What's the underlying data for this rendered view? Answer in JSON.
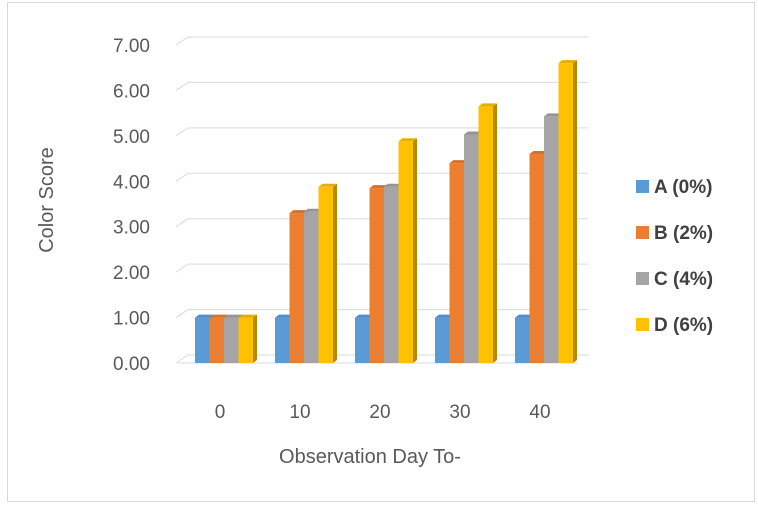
{
  "chart_data": {
    "type": "bar",
    "categories": [
      "0",
      "10",
      "20",
      "30",
      "40"
    ],
    "series": [
      {
        "name": "A (0%)",
        "values": [
          1.0,
          1.0,
          1.0,
          1.0,
          1.0
        ],
        "color": "#5b9bd5"
      },
      {
        "name": "B (2%)",
        "values": [
          1.0,
          3.3,
          3.85,
          4.4,
          4.6
        ],
        "color": "#ed7d31"
      },
      {
        "name": "C (4%)",
        "values": [
          1.0,
          3.33,
          3.88,
          5.03,
          5.43
        ],
        "color": "#a5a5a5"
      },
      {
        "name": "D (6%)",
        "values": [
          1.0,
          3.88,
          4.88,
          5.65,
          6.6
        ],
        "color": "#ffc000"
      }
    ],
    "yticks": [
      "0.00",
      "1.00",
      "2.00",
      "3.00",
      "4.00",
      "5.00",
      "6.00",
      "7.00"
    ],
    "ylim": [
      0,
      7
    ],
    "xlabel": "Observation Day To-",
    "ylabel": "Color Score",
    "grid": true,
    "legend_position": "right",
    "style": "3d-clustered-column"
  }
}
